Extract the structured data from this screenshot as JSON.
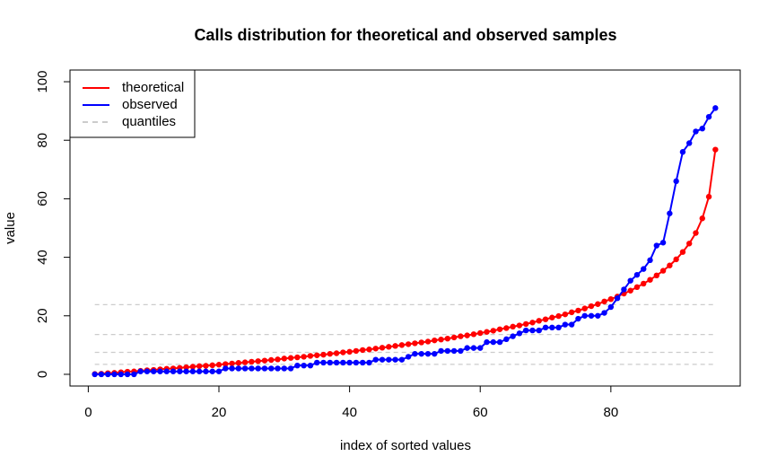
{
  "chart_data": {
    "type": "line",
    "title": "Calls distribution for theoretical and observed samples",
    "x_label": "index of sorted values",
    "y_label": "value",
    "x": [
      1,
      2,
      3,
      4,
      5,
      6,
      7,
      8,
      9,
      10,
      11,
      12,
      13,
      14,
      15,
      16,
      17,
      18,
      19,
      20,
      21,
      22,
      23,
      24,
      25,
      26,
      27,
      28,
      29,
      30,
      31,
      32,
      33,
      34,
      35,
      36,
      37,
      38,
      39,
      40,
      41,
      42,
      43,
      44,
      45,
      46,
      47,
      48,
      49,
      50,
      51,
      52,
      53,
      54,
      55,
      56,
      57,
      58,
      59,
      60,
      61,
      62,
      63,
      64,
      65,
      66,
      67,
      68,
      69,
      70,
      71,
      72,
      73,
      74,
      75,
      76,
      77,
      78,
      79,
      80,
      81,
      82,
      83,
      84,
      85,
      86,
      87,
      88,
      89,
      90,
      91,
      92,
      93,
      94,
      95,
      96
    ],
    "series": [
      {
        "name": "theoretical",
        "color": "#ff0000",
        "values": [
          0.1,
          0.2,
          0.4,
          0.5,
          0.7,
          0.9,
          1.0,
          1.2,
          1.4,
          1.5,
          1.7,
          1.9,
          2.0,
          2.2,
          2.4,
          2.6,
          2.8,
          2.9,
          3.1,
          3.3,
          3.5,
          3.7,
          3.9,
          4.1,
          4.3,
          4.5,
          4.7,
          4.9,
          5.1,
          5.4,
          5.6,
          5.8,
          6.0,
          6.3,
          6.5,
          6.7,
          7.0,
          7.2,
          7.5,
          7.7,
          8.0,
          8.3,
          8.5,
          8.8,
          9.1,
          9.4,
          9.7,
          10.0,
          10.3,
          10.6,
          10.9,
          11.2,
          11.6,
          11.9,
          12.2,
          12.6,
          13.0,
          13.3,
          13.7,
          14.1,
          14.5,
          14.9,
          15.4,
          15.8,
          16.3,
          16.7,
          17.2,
          17.7,
          18.3,
          18.8,
          19.4,
          19.9,
          20.5,
          21.2,
          21.8,
          22.5,
          23.3,
          24.0,
          24.9,
          25.7,
          26.6,
          27.6,
          28.6,
          29.8,
          31.0,
          32.3,
          33.8,
          35.4,
          37.2,
          39.3,
          41.8,
          44.7,
          48.3,
          53.3,
          60.7,
          76.8
        ]
      },
      {
        "name": "observed",
        "color": "#0000ff",
        "values": [
          0,
          0,
          0,
          0,
          0,
          0,
          0,
          1,
          1,
          1,
          1,
          1,
          1,
          1,
          1,
          1,
          1,
          1,
          1,
          1,
          2,
          2,
          2,
          2,
          2,
          2,
          2,
          2,
          2,
          2,
          2,
          3,
          3,
          3,
          4,
          4,
          4,
          4,
          4,
          4,
          4,
          4,
          4,
          5,
          5,
          5,
          5,
          5,
          6,
          7,
          7,
          7,
          7,
          8,
          8,
          8,
          8,
          9,
          9,
          9,
          11,
          11,
          11,
          12,
          13,
          14,
          15,
          15,
          15,
          16,
          16,
          16,
          17,
          17,
          19,
          20,
          20,
          20,
          21,
          23,
          26,
          29,
          32,
          34,
          36,
          39,
          44,
          45,
          55,
          66,
          76,
          79,
          83,
          84,
          88,
          91
        ]
      }
    ],
    "quantiles": {
      "name": "quantiles",
      "color": "#cccccc",
      "values": [
        3.4,
        7.5,
        13.6,
        23.8
      ]
    },
    "xlim": [
      -2.8,
      99.8
    ],
    "ylim": [
      -4,
      104
    ],
    "xticks": [
      0,
      20,
      40,
      60,
      80
    ],
    "yticks": [
      0,
      20,
      40,
      60,
      80,
      100
    ],
    "legend": "top-left"
  }
}
